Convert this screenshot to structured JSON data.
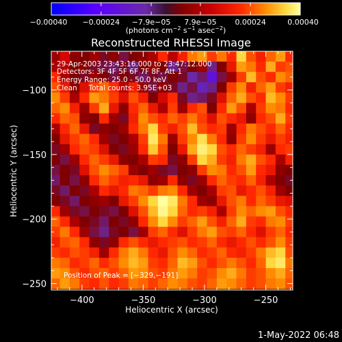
{
  "chart_data": {
    "type": "heatmap",
    "title": "Reconstructed RHESSI Image",
    "xlabel": "Heliocentric X (arcsec)",
    "ylabel": "Heliocentric Y (arcsec)",
    "xlim": [
      -425,
      -228
    ],
    "ylim": [
      -255,
      -70
    ],
    "xticks": [
      -400,
      -350,
      -300,
      -250
    ],
    "yticks": [
      -100,
      -150,
      -200,
      -250
    ],
    "xtick_labels": [
      "−400",
      "−350",
      "−300",
      "−250"
    ],
    "ytick_labels": [
      "−100",
      "−150",
      "−200",
      "−250"
    ],
    "colorbar": {
      "range": [
        -0.0004,
        0.0004
      ],
      "ticks": [
        -0.0004,
        -0.00024,
        -7.9e-05,
        7.9e-05,
        0.00024,
        0.0004
      ],
      "tick_labels": [
        "−0.00040",
        "−0.00024",
        "−7.9e−05",
        "7.9e−05",
        "0.00024",
        "0.00040"
      ],
      "units_text": "(photons cm",
      "units_exp1": "−2",
      "units_mid": " s",
      "units_exp2": "−1",
      "units_mid2": " asec",
      "units_exp3": "−2",
      "units_end": ")",
      "colors": [
        "#0000ff",
        "#5a00ff",
        "#6a2aa8",
        "#7f0000",
        "#c80000",
        "#ff2800",
        "#ff8c00",
        "#ffd840",
        "#ffffa0"
      ]
    },
    "annotations": {
      "line1": "29-Apr-2003 23:43:16.000 to 23:47:12.000",
      "line2": "Detectors: 3F 4F 5F 6F 7F 8F, Att 1",
      "line3": "Energy Range: 25.0 - 50.0 keV",
      "line4": "Clean     Total counts: 3.95E+03",
      "peak": "Position of Peak = [−329,−191]"
    },
    "peak": {
      "x": -329,
      "y": -191
    },
    "image_values": {
      "x": [
        -422,
        -414,
        -406,
        -398,
        -390,
        -382,
        -374,
        -366,
        -358,
        -350,
        -342,
        -334,
        -326,
        -318,
        -310,
        -302,
        -294,
        -286,
        -278,
        -270,
        -262,
        -254,
        -246,
        -238,
        -230
      ],
      "y": [
        -74,
        -82,
        -90,
        -98,
        -106,
        -114,
        -122,
        -130,
        -138,
        -146,
        -154,
        -162,
        -170,
        -178,
        -186,
        -194,
        -202,
        -210,
        -218,
        -226,
        -234,
        -242,
        -250
      ],
      "z": [
        [
          -6e-05,
          2e-05,
          -8e-05,
          -0.0001,
          -6e-05,
          -0.00012,
          -8e-05,
          -0.00014,
          -0.0001,
          -8e-05,
          -4e-05,
          0.0001,
          -2e-05,
          8e-05,
          0.00018,
          0.00022,
          0.00012,
          0.00018,
          0.0001,
          0.0003,
          0.00014,
          8e-05,
          0.00016,
          0.00022,
          0.0001
        ],
        [
          -4e-05,
          -2e-05,
          -0.0001,
          -8e-05,
          -0.00012,
          -0.00014,
          -0.00016,
          -0.00012,
          -0.00018,
          -0.0001,
          -6e-05,
          -0.0001,
          -0.00018,
          -0.00014,
          -0.0001,
          -6e-05,
          -0.00018,
          -0.0001,
          6e-05,
          0.00022,
          0.00018,
          0.0001,
          0.00024,
          0.00012,
          0.00014
        ],
        [
          0.0001,
          -4e-05,
          -0.0001,
          -0.00012,
          -6e-05,
          -0.0001,
          -0.00014,
          -0.0001,
          -0.00012,
          -0.00016,
          -0.00012,
          -0.00014,
          -0.0001,
          -0.00012,
          -0.0002,
          -0.00016,
          -0.00026,
          -0.00014,
          -6e-05,
          0.00012,
          0.00026,
          0.00014,
          0.0001,
          0.0002,
          0.00016
        ],
        [
          0.00014,
          6e-05,
          -8e-05,
          4e-05,
          0.00012,
          0.00016,
          0.0001,
          -2e-05,
          8e-05,
          -6e-05,
          -0.00014,
          -8e-05,
          -0.00012,
          -0.00018,
          -0.00014,
          -0.00022,
          -0.00018,
          -0.0001,
          0.00012,
          0.0002,
          8e-05,
          0.00016,
          0.00022,
          0.00012,
          8e-05
        ],
        [
          0.0002,
          0.00012,
          -4e-05,
          0.0001,
          0.00022,
          0.00018,
          0.00012,
          4e-05,
          0.00014,
          8e-05,
          -0.0001,
          2e-05,
          0.0001,
          -0.00012,
          -0.00018,
          -0.00016,
          -0.00012,
          4e-05,
          0.00016,
          0.00024,
          0.00014,
          0.0001,
          0.00026,
          0.0002,
          0.00012
        ],
        [
          0.00016,
          0.0002,
          8e-05,
          -6e-05,
          0.00012,
          0.00024,
          6e-05,
          -8e-05,
          0.0001,
          0.00016,
          6e-05,
          -4e-05,
          0.00012,
          -6e-05,
          0.0001,
          0.00014,
          -0.0001,
          0.0001,
          0.00022,
          0.00014,
          -4e-05,
          0.00012,
          0.0002,
          0.00018,
          0.0001
        ],
        [
          0.0001,
          0.00016,
          0.00014,
          -8e-05,
          -0.0001,
          0.0001,
          -6e-05,
          -0.00012,
          8e-05,
          0.0002,
          0.00014,
          0.0001,
          0.00016,
          0.00012,
          0.00018,
          0.00012,
          4e-05,
          0.00014,
          0.0001,
          6e-05,
          -8e-05,
          0.0001,
          0.00014,
          0.00024,
          0.00012
        ],
        [
          -4e-05,
          0.0001,
          0.00016,
          6e-05,
          -0.00012,
          -8e-05,
          -0.0001,
          -6e-05,
          0.0001,
          0.00018,
          0.0003,
          0.00012,
          8e-05,
          0.00014,
          0.00026,
          0.00014,
          0.0001,
          0.00012,
          -6e-05,
          0.0001,
          0.00018,
          0.00014,
          0.0001,
          0.00016,
          0.0001
        ],
        [
          -0.0001,
          6e-05,
          0.00012,
          0.00016,
          0.0001,
          -6e-05,
          -0.00012,
          -0.0001,
          -4e-05,
          0.00012,
          0.00034,
          0.00018,
          -6e-05,
          0.00012,
          0.0002,
          0.00032,
          0.00018,
          0.0001,
          -8e-05,
          0.00012,
          0.0002,
          0.00012,
          6e-05,
          0.00012,
          8e-05
        ],
        [
          -0.00012,
          -6e-05,
          0.0001,
          0.00014,
          0.00012,
          4e-05,
          -0.0001,
          -0.00012,
          -6e-05,
          0.0001,
          0.00028,
          0.00014,
          -0.0001,
          6e-05,
          0.00024,
          0.00036,
          0.0003,
          0.00014,
          0.0001,
          0.00016,
          0.00012,
          8e-05,
          -6e-05,
          0.0001,
          0.00012
        ],
        [
          -0.0001,
          -0.00014,
          -6e-05,
          0.0001,
          0.00016,
          0.00012,
          6e-05,
          -8e-05,
          -0.0001,
          -4e-05,
          0.00012,
          0.0001,
          -0.00012,
          -8e-05,
          0.00012,
          0.0003,
          0.00024,
          0.00012,
          8e-05,
          0.00018,
          0.00024,
          0.00014,
          0.0001,
          -4e-05,
          8e-05
        ],
        [
          -0.00014,
          -0.0001,
          -0.00012,
          4e-05,
          0.00014,
          0.0002,
          0.00016,
          0.00012,
          -6e-05,
          -0.0001,
          -6e-05,
          -0.00012,
          -0.00014,
          -0.0001,
          -8e-05,
          0.00012,
          0.0002,
          0.00018,
          0.0001,
          0.00014,
          0.00022,
          0.0001,
          6e-05,
          -8e-05,
          -0.0001
        ],
        [
          -0.00016,
          -0.0001,
          -0.00014,
          -8e-05,
          0.0001,
          0.00016,
          0.00012,
          8e-05,
          0.0001,
          6e-05,
          -8e-05,
          -6e-05,
          0.0001,
          -8e-05,
          -0.00012,
          -6e-05,
          0.0001,
          0.00016,
          0.00012,
          0.0001,
          0.00016,
          8e-05,
          -4e-05,
          -0.0001,
          -0.00012
        ],
        [
          -0.00012,
          -0.00016,
          -0.0001,
          -0.00012,
          -4e-05,
          0.0001,
          6e-05,
          0.0001,
          0.00018,
          0.00016,
          0.00012,
          0.00018,
          0.0002,
          0.0001,
          -6e-05,
          -0.0001,
          -4e-05,
          0.00012,
          0.00014,
          6e-05,
          0.0001,
          0.00014,
          8e-05,
          -6e-05,
          -0.0001
        ],
        [
          -0.0001,
          -0.00012,
          -0.00016,
          -0.0001,
          -8e-05,
          -6e-05,
          -0.0001,
          6e-05,
          0.00012,
          0.0002,
          0.0003,
          0.0004,
          0.00034,
          0.00018,
          0.0001,
          -6e-05,
          -8e-05,
          6e-05,
          0.00014,
          0.00018,
          0.0001,
          0.00016,
          0.00012,
          6e-05,
          4e-05
        ],
        [
          0.0001,
          -6e-05,
          -0.00012,
          -0.00014,
          -0.0001,
          -0.00012,
          -0.00014,
          -0.0001,
          4e-05,
          0.00014,
          0.00026,
          0.00038,
          0.0003,
          0.00016,
          0.0001,
          0.00012,
          8e-05,
          -4e-05,
          0.00012,
          0.0002,
          0.00016,
          0.0002,
          0.00022,
          0.00014,
          0.0001
        ],
        [
          0.00016,
          0.0001,
          -4e-05,
          -0.0001,
          -0.00012,
          -0.00016,
          -0.0001,
          -0.00012,
          -8e-05,
          0.0001,
          0.0002,
          0.0003,
          0.0002,
          0.00012,
          0.00016,
          0.00022,
          0.00014,
          8e-05,
          0.00016,
          0.00024,
          0.00012,
          0.0001,
          0.00018,
          0.0002,
          0.00012
        ],
        [
          0.00012,
          0.00018,
          0.0001,
          -6e-05,
          -0.00014,
          -0.00018,
          -0.00012,
          -0.0001,
          -0.00014,
          -6e-05,
          0.00012,
          0.00016,
          0.0001,
          4e-05,
          0.00012,
          0.00018,
          0.00022,
          0.00014,
          0.00012,
          0.00016,
          0.0001,
          4e-05,
          0.00012,
          0.00016,
          0.0001
        ],
        [
          8e-05,
          0.00014,
          0.00016,
          0.0001,
          -8e-05,
          -0.00012,
          -8e-05,
          0.0001,
          0.00014,
          0.0001,
          6e-05,
          0.0001,
          0.00012,
          0.00014,
          0.0001,
          0.00012,
          0.00016,
          0.0001,
          6e-05,
          0.0001,
          0.00014,
          0.0001,
          0.00014,
          0.0002,
          0.00012
        ],
        [
          0.00012,
          0.0001,
          0.00014,
          0.00012,
          8e-05,
          -6e-05,
          0.0001,
          0.00018,
          0.00024,
          0.00018,
          0.0001,
          6e-05,
          0.00014,
          0.0002,
          0.00016,
          0.0001,
          0.00012,
          0.00016,
          0.0001,
          8e-05,
          0.00012,
          0.00018,
          0.00026,
          0.0003,
          0.00014
        ],
        [
          0.00018,
          0.00016,
          0.0001,
          0.00012,
          0.00016,
          0.0001,
          0.00014,
          0.0002,
          0.00026,
          0.00022,
          0.00012,
          0.0001,
          0.00016,
          0.00026,
          0.00022,
          0.00014,
          0.0001,
          0.00014,
          0.00018,
          0.00014,
          0.0001,
          0.00016,
          0.0003,
          0.00034,
          0.00018
        ],
        [
          0.00022,
          0.0002,
          0.00014,
          0.0001,
          0.00014,
          0.00016,
          0.00012,
          0.00016,
          0.00022,
          0.0002,
          0.00014,
          0.00012,
          0.00018,
          0.00022,
          0.00018,
          0.00012,
          0.00014,
          0.0002,
          0.00024,
          0.00018,
          0.00012,
          0.00014,
          0.0002,
          0.00024,
          0.00016
        ],
        [
          0.00016,
          0.00022,
          0.00018,
          0.00012,
          0.0001,
          0.00014,
          0.0001,
          0.00012,
          0.00018,
          0.00016,
          0.00012,
          0.00016,
          0.0002,
          0.00018,
          0.00014,
          0.00012,
          0.00016,
          0.00022,
          0.0002,
          0.00016,
          0.00012,
          0.00014,
          0.00018,
          0.0002,
          0.00014
        ]
      ]
    }
  },
  "footer": {
    "timestamp": "1-May-2022 06:48"
  }
}
